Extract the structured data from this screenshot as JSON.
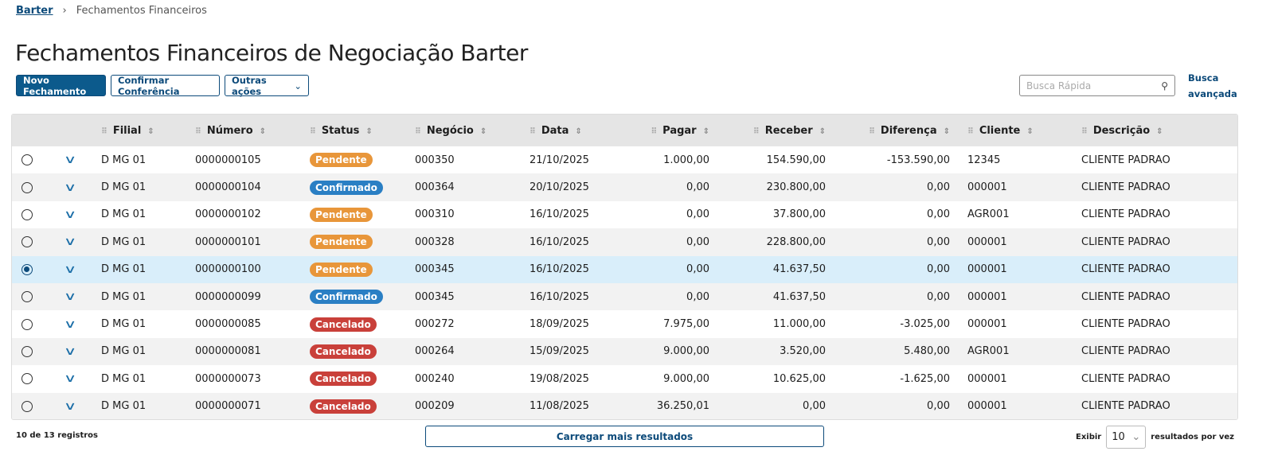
{
  "breadcrumb": {
    "root": "Barter",
    "current": "Fechamentos Financeiros"
  },
  "title": "Fechamentos Financeiros de Negociação Barter",
  "toolbar": {
    "new": "Novo Fechamento",
    "confirm": "Confirmar Conferência",
    "more": "Outras ações"
  },
  "search": {
    "placeholder": "Busca Rápida",
    "advanced": "Busca avançada"
  },
  "columns": [
    "Filial",
    "Número",
    "Status",
    "Negócio",
    "Data",
    "Pagar",
    "Receber",
    "Diferença",
    "Cliente",
    "Descrição"
  ],
  "status_colors": {
    "Pendente": "#e8963a",
    "Confirmado": "#2a7fc4",
    "Cancelado": "#c9403a"
  },
  "rows": [
    [
      "D MG 01",
      "0000000105",
      "Pendente",
      "000350",
      "21/10/2025",
      "1.000,00",
      "154.590,00",
      "-153.590,00",
      "12345",
      "CLIENTE PADRAO"
    ],
    [
      "D MG 01",
      "0000000104",
      "Confirmado",
      "000364",
      "20/10/2025",
      "0,00",
      "230.800,00",
      "0,00",
      "000001",
      "CLIENTE PADRAO"
    ],
    [
      "D MG 01",
      "0000000102",
      "Pendente",
      "000310",
      "16/10/2025",
      "0,00",
      "37.800,00",
      "0,00",
      "AGR001",
      "CLIENTE PADRAO"
    ],
    [
      "D MG 01",
      "0000000101",
      "Pendente",
      "000328",
      "16/10/2025",
      "0,00",
      "228.800,00",
      "0,00",
      "000001",
      "CLIENTE PADRAO"
    ],
    [
      "D MG 01",
      "0000000100",
      "Pendente",
      "000345",
      "16/10/2025",
      "0,00",
      "41.637,50",
      "0,00",
      "000001",
      "CLIENTE PADRAO"
    ],
    [
      "D MG 01",
      "0000000099",
      "Confirmado",
      "000345",
      "16/10/2025",
      "0,00",
      "41.637,50",
      "0,00",
      "000001",
      "CLIENTE PADRAO"
    ],
    [
      "D MG 01",
      "0000000085",
      "Cancelado",
      "000272",
      "18/09/2025",
      "7.975,00",
      "11.000,00",
      "-3.025,00",
      "000001",
      "CLIENTE PADRAO"
    ],
    [
      "D MG 01",
      "0000000081",
      "Cancelado",
      "000264",
      "15/09/2025",
      "9.000,00",
      "3.520,00",
      "5.480,00",
      "AGR001",
      "CLIENTE PADRAO"
    ],
    [
      "D MG 01",
      "0000000073",
      "Cancelado",
      "000240",
      "19/08/2025",
      "9.000,00",
      "10.625,00",
      "-1.625,00",
      "000001",
      "CLIENTE PADRAO"
    ],
    [
      "D MG 01",
      "0000000071",
      "Cancelado",
      "000209",
      "11/08/2025",
      "36.250,01",
      "0,00",
      "0,00",
      "000001",
      "CLIENTE PADRAO"
    ]
  ],
  "selected_row": 4,
  "footer": {
    "count": "10 de 13 registros",
    "load_more": "Carregar mais resultados",
    "show": "Exibir",
    "per_page": "10",
    "per_page_suffix": "resultados por vez"
  }
}
